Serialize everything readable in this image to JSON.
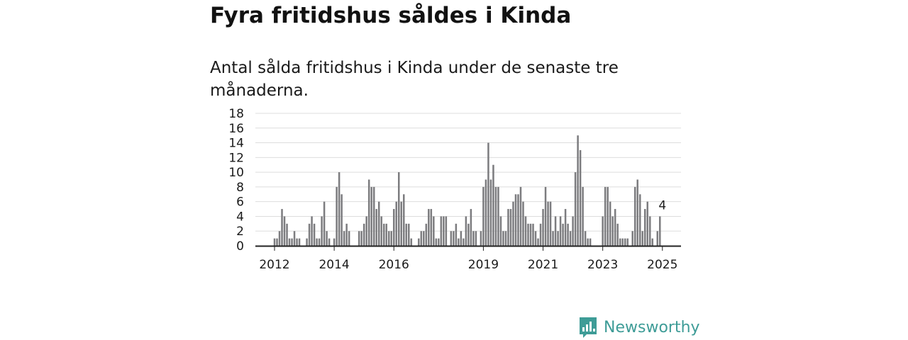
{
  "header": {
    "title": "Fyra fritidshus såldes i Kinda",
    "subtitle": "Antal sålda fritidshus i Kinda under de senaste tre månaderna."
  },
  "brand": {
    "name": "Newsworthy",
    "color": "#3e9c97",
    "icon": "bar-chart-badge-icon"
  },
  "colors": {
    "bar": "#7c7c7f",
    "highlight": "#2a9d9a",
    "grid": "#dddddd",
    "axis": "#222222"
  },
  "chart_data": {
    "type": "bar",
    "title": "Fyra fritidshus såldes i Kinda",
    "subtitle": "Antal sålda fritidshus i Kinda under de senaste tre månaderna.",
    "xlabel": "",
    "ylabel": "",
    "ylim": [
      0,
      18
    ],
    "yticks": [
      0,
      2,
      4,
      6,
      8,
      10,
      12,
      14,
      16,
      18
    ],
    "grid": true,
    "x_start": "2012-01",
    "xticks": [
      {
        "label": "2012",
        "index": 0
      },
      {
        "label": "2014",
        "index": 24
      },
      {
        "label": "2016",
        "index": 48
      },
      {
        "label": "2019",
        "index": 84
      },
      {
        "label": "2021",
        "index": 108
      },
      {
        "label": "2023",
        "index": 132
      },
      {
        "label": "2025",
        "index": 156
      }
    ],
    "values": [
      1,
      1,
      2,
      5,
      4,
      3,
      1,
      1,
      2,
      1,
      1,
      0,
      0,
      1,
      3,
      4,
      3,
      1,
      1,
      4,
      6,
      2,
      1,
      0,
      1,
      8,
      10,
      7,
      2,
      3,
      2,
      0,
      0,
      0,
      2,
      2,
      3,
      4,
      9,
      8,
      8,
      5,
      6,
      4,
      3,
      3,
      2,
      2,
      5,
      6,
      10,
      6,
      7,
      3,
      3,
      1,
      0,
      0,
      1,
      2,
      2,
      3,
      5,
      5,
      4,
      1,
      1,
      4,
      4,
      4,
      0,
      2,
      2,
      3,
      1,
      2,
      1,
      4,
      3,
      5,
      2,
      2,
      0,
      2,
      8,
      9,
      14,
      9,
      11,
      8,
      8,
      4,
      2,
      2,
      5,
      5,
      6,
      7,
      7,
      8,
      6,
      4,
      3,
      3,
      3,
      2,
      1,
      3,
      5,
      8,
      6,
      6,
      2,
      4,
      2,
      4,
      3,
      5,
      3,
      2,
      4,
      10,
      15,
      13,
      8,
      2,
      1,
      1,
      0,
      0,
      0,
      0,
      4,
      8,
      8,
      6,
      4,
      5,
      3,
      1,
      1,
      1,
      1,
      0,
      2,
      8,
      9,
      7,
      2,
      5,
      6,
      4,
      1,
      0,
      2,
      4
    ],
    "highlight": {
      "index": 156,
      "value": 4,
      "label": "4"
    }
  }
}
